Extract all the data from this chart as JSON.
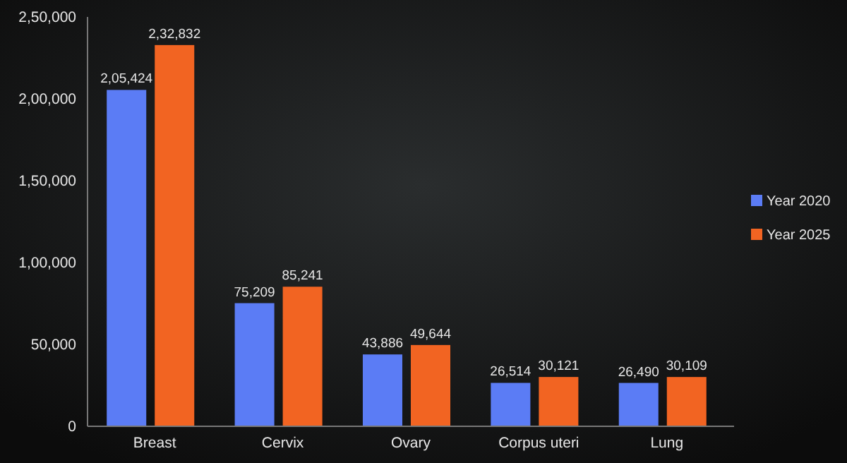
{
  "chart_data": {
    "type": "bar",
    "categories": [
      "Breast",
      "Cervix",
      "Ovary",
      "Corpus uteri",
      "Lung"
    ],
    "series": [
      {
        "name": "Year 2020",
        "color": "#5b7cf5",
        "values": [
          205424,
          75209,
          43886,
          26514,
          26490
        ],
        "value_labels": [
          "2,05,424",
          "75,209",
          "43,886",
          "26,514",
          "26,490"
        ]
      },
      {
        "name": "Year 2025",
        "color": "#f26422",
        "values": [
          232832,
          85241,
          49644,
          30121,
          30109
        ],
        "value_labels": [
          "2,32,832",
          "85,241",
          "49,644",
          "30,121",
          "30,109"
        ]
      }
    ],
    "ylim": [
      0,
      250000
    ],
    "yticks": [
      0,
      {
        "value": 50000,
        "label": "50,000"
      },
      {
        "value": 100000,
        "label": "1,00,000"
      },
      {
        "value": 150000,
        "label": "1,50,000"
      },
      {
        "value": 200000,
        "label": "2,00,000"
      },
      {
        "value": 250000,
        "label": "2,50,000"
      }
    ],
    "grid": false,
    "legend": "right"
  }
}
